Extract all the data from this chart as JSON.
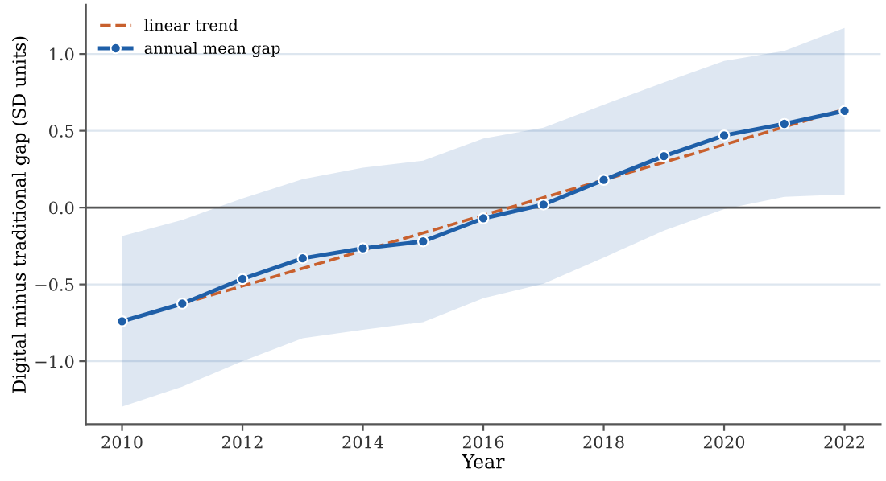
{
  "chart_data": {
    "type": "line",
    "xlabel": "Year",
    "ylabel": "Digital minus traditional gap (SD units)",
    "x": [
      2010,
      2011,
      2012,
      2013,
      2014,
      2015,
      2016,
      2017,
      2018,
      2019,
      2020,
      2021,
      2022
    ],
    "series": [
      {
        "name": "linear trend",
        "color": "#c8602e",
        "line_style": "dashed",
        "marker": "none",
        "x": [
          2010,
          2022
        ],
        "values": [
          -0.74,
          0.64
        ]
      },
      {
        "name": "annual mean gap",
        "color": "#1f5fa8",
        "line_style": "solid",
        "marker": "circle",
        "values": [
          -0.74,
          -0.625,
          -0.465,
          -0.33,
          -0.265,
          -0.22,
          -0.07,
          0.02,
          0.18,
          0.335,
          0.47,
          0.545,
          0.63
        ],
        "lower": [
          -1.295,
          -1.165,
          -1.0,
          -0.85,
          -0.795,
          -0.745,
          -0.59,
          -0.495,
          -0.325,
          -0.15,
          -0.01,
          0.07,
          0.085
        ],
        "upper": [
          -0.185,
          -0.08,
          0.06,
          0.185,
          0.26,
          0.305,
          0.45,
          0.52,
          0.67,
          0.815,
          0.955,
          1.02,
          1.17
        ]
      }
    ],
    "xlim": [
      2009.4,
      2022.6
    ],
    "ylim": [
      -1.41,
      1.32
    ],
    "xticks": [
      2010,
      2012,
      2014,
      2016,
      2018,
      2020,
      2022
    ],
    "yticks": [
      {
        "value": -1.0,
        "label": "−1.0"
      },
      {
        "value": -0.5,
        "label": "−0.5"
      },
      {
        "value": 0.0,
        "label": "0.0"
      },
      {
        "value": 0.5,
        "label": "0.5"
      },
      {
        "value": 1.0,
        "label": "1.0"
      }
    ],
    "ref_lines": [
      {
        "axis": "y",
        "value": 0,
        "color": "#555555"
      }
    ],
    "grid": "y",
    "legend": "top left"
  }
}
